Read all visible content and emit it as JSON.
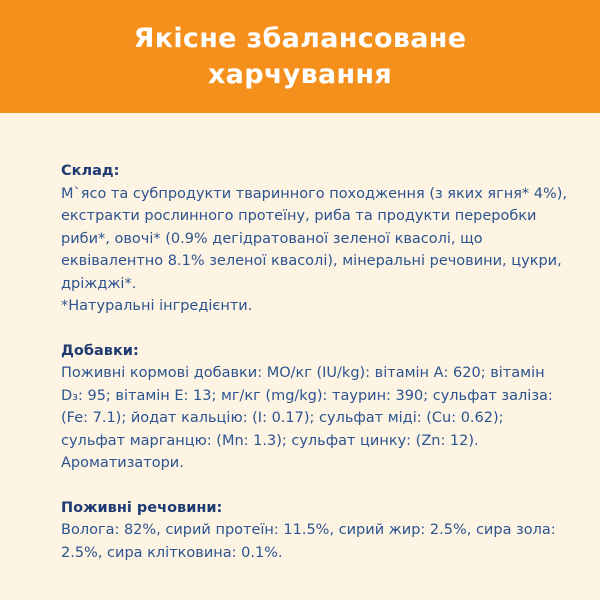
{
  "header": {
    "title_lines": [
      "Якісне збалансоване",
      "харчування"
    ]
  },
  "sections": [
    {
      "heading": "Склад:",
      "lines": [
        "М`ясо та субпродукти тваринного походження (з яких ягня* 4%),",
        "екстракти рослинного протеїну, риба та продукти переробки",
        "риби*, овочі* (0.9% дегідратованої зеленої квасолі, що",
        "еквівалентно 8.1% зеленої квасолі), мінеральні речовини, цукри,",
        "дріжджі*.",
        "*Натуральні інгредієнти."
      ]
    },
    {
      "heading": "Добавки:",
      "lines": [
        "Поживні кормові добавки: МО/кг (IU/kg): вітамін А: 620; вітамін",
        "D₃: 95; вітамін Е: 13; мг/кг (mg/kg): таурин: 390; сульфат заліза:",
        "(Fe: 7.1); йодат кальцію: (I: 0.17); сульфат міді: (Cu: 0.62);",
        "сульфат марганцю: (Mn: 1.3); сульфат цинку: (Zn: 12).",
        "Ароматизатори."
      ]
    },
    {
      "heading": "Поживні речовини:",
      "lines": [
        "Волога: 82%, сирий протеїн: 11.5%, сирий жир: 2.5%, сира зола:",
        "2.5%, сира клітковина: 0.1%."
      ]
    }
  ]
}
